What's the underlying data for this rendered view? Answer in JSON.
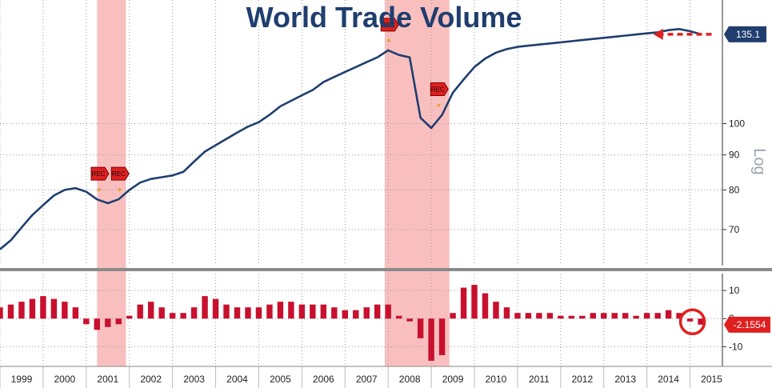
{
  "chart_data": [
    {
      "type": "line",
      "title": "World Trade Volume",
      "ylabel": "Log",
      "y_scale": "log",
      "ylim": [
        62,
        150
      ],
      "y_ticks": [
        70,
        80,
        90,
        100
      ],
      "y_tick_labels": [
        "70",
        "80",
        "90",
        "100"
      ],
      "xlim": [
        1999.0,
        2015.75
      ],
      "grid": true,
      "series": [
        {
          "color": "#1f3e6e",
          "x": [
            1999.0,
            1999.25,
            1999.5,
            1999.75,
            2000.0,
            2000.25,
            2000.5,
            2000.75,
            2001.0,
            2001.25,
            2001.5,
            2001.75,
            2002.0,
            2002.25,
            2002.5,
            2002.75,
            2003.0,
            2003.25,
            2003.5,
            2003.75,
            2004.0,
            2004.25,
            2004.5,
            2004.75,
            2005.0,
            2005.25,
            2005.5,
            2005.75,
            2006.0,
            2006.25,
            2006.5,
            2006.75,
            2007.0,
            2007.25,
            2007.5,
            2007.75,
            2008.0,
            2008.25,
            2008.5,
            2008.75,
            2009.0,
            2009.25,
            2009.5,
            2009.75,
            2010.0,
            2010.25,
            2010.5,
            2010.75,
            2011.0,
            2011.25,
            2011.5,
            2011.75,
            2012.0,
            2012.25,
            2012.5,
            2012.75,
            2013.0,
            2013.25,
            2013.5,
            2013.75,
            2014.0,
            2014.25,
            2014.5,
            2014.75,
            2015.0,
            2015.25
          ],
          "y": [
            65.5,
            67.5,
            70.5,
            73.5,
            76,
            78.5,
            80,
            80.5,
            79.5,
            77.5,
            76.5,
            77.5,
            80,
            82,
            83,
            83.5,
            84,
            85,
            88,
            91,
            93,
            95,
            97,
            99,
            100.5,
            103,
            106,
            108,
            110,
            112,
            115,
            117,
            119,
            121,
            123,
            125,
            128,
            126,
            125,
            102,
            98.5,
            103,
            111,
            116,
            121,
            124.5,
            127,
            128.5,
            129.5,
            130,
            130.5,
            131,
            131.5,
            132,
            132.5,
            133,
            133.5,
            134,
            134.5,
            135,
            135.5,
            136,
            137,
            137.5,
            136.5,
            135.1
          ]
        }
      ],
      "last_value": "135.1",
      "recession_markers": [
        "REC",
        "REC",
        "REC",
        "REC"
      ],
      "recession_bands": [
        [
          2001.25,
          2001.92
        ],
        [
          2007.92,
          2009.42
        ]
      ],
      "recession_band_color": "#f8b4b4"
    },
    {
      "type": "bar",
      "ylim": [
        -17,
        16
      ],
      "y_ticks": [
        -10,
        0,
        10
      ],
      "y_tick_labels": [
        "-10",
        "0",
        "10"
      ],
      "bar_color": "#c8102e",
      "last_value": "-2.1554",
      "x": [
        1999.0,
        1999.25,
        1999.5,
        1999.75,
        2000.0,
        2000.25,
        2000.5,
        2000.75,
        2001.0,
        2001.25,
        2001.5,
        2001.75,
        2002.0,
        2002.25,
        2002.5,
        2002.75,
        2003.0,
        2003.25,
        2003.5,
        2003.75,
        2004.0,
        2004.25,
        2004.5,
        2004.75,
        2005.0,
        2005.25,
        2005.5,
        2005.75,
        2006.0,
        2006.25,
        2006.5,
        2006.75,
        2007.0,
        2007.25,
        2007.5,
        2007.75,
        2008.0,
        2008.25,
        2008.5,
        2008.75,
        2009.0,
        2009.25,
        2009.5,
        2009.75,
        2010.0,
        2010.25,
        2010.5,
        2010.75,
        2011.0,
        2011.25,
        2011.5,
        2011.75,
        2012.0,
        2012.25,
        2012.5,
        2012.75,
        2013.0,
        2013.25,
        2013.5,
        2013.75,
        2014.0,
        2014.25,
        2014.5,
        2014.75,
        2015.0,
        2015.25
      ],
      "values": [
        4,
        5,
        6,
        7,
        8,
        7,
        6,
        4,
        -2,
        -4,
        -3,
        -2,
        1,
        5,
        6,
        4,
        2,
        2,
        4,
        8,
        7,
        5,
        4,
        4,
        4,
        5,
        6,
        6,
        5,
        5,
        5,
        4,
        3,
        3,
        4,
        5,
        5,
        1,
        -1,
        -7,
        -15,
        -13,
        2,
        11,
        12,
        9,
        6,
        4,
        2,
        2,
        2,
        2,
        1,
        1,
        1,
        2,
        2,
        2,
        2,
        1,
        2,
        2,
        3,
        2,
        -1,
        -2.1554
      ]
    }
  ],
  "x_axis": {
    "labels": [
      "1999",
      "2000",
      "2001",
      "2002",
      "2003",
      "2004",
      "2005",
      "2006",
      "2007",
      "2008",
      "2009",
      "2010",
      "2011",
      "2012",
      "2013",
      "2014",
      "2015"
    ]
  },
  "colors": {
    "line": "#1f3e6e",
    "bars": "#c8102e",
    "recession": "#f8b4b4",
    "marker": "#e02020",
    "title": "#1f3e6e",
    "callout_line": "#1f3e6e",
    "callout_bar": "#e02020",
    "annotation": "#e02020"
  },
  "annotations": [
    {
      "icon": "left-arrow-icon",
      "target": "last-value"
    },
    {
      "icon": "circle-icon",
      "target": "last-bar"
    }
  ]
}
